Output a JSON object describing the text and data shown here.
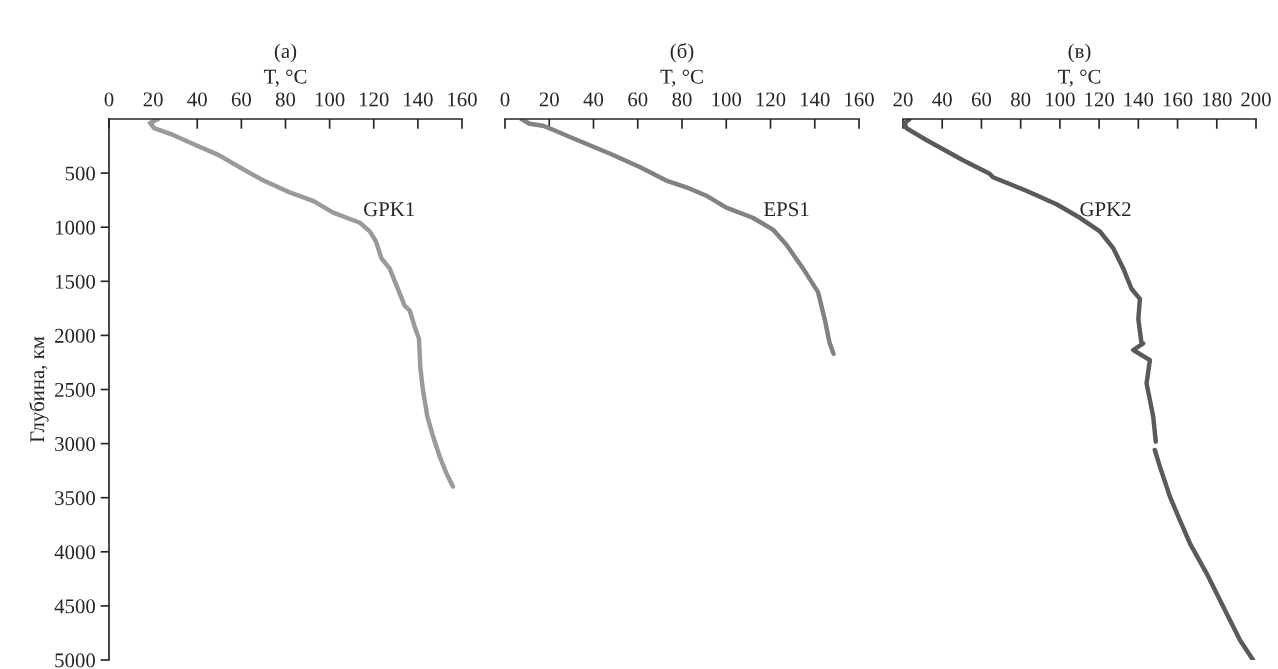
{
  "chart_data": [
    {
      "type": "line",
      "title": "(a)",
      "xlabel": "T, °C",
      "ylabel": "Глубина, км",
      "xlim": [
        0,
        160
      ],
      "xticks": [
        0,
        20,
        40,
        60,
        80,
        100,
        120,
        140,
        160
      ],
      "ylim": [
        5000,
        0
      ],
      "yticks": [
        500,
        1000,
        1500,
        2000,
        2500,
        3000,
        3500,
        4000,
        4500,
        5000
      ],
      "grid": false,
      "legend": false,
      "series": [
        {
          "name": "GPK1",
          "color": "#9a9a9a",
          "x": [
            22.3,
            18.6,
            20.4,
            29,
            41,
            49.8,
            59,
            70,
            81.9,
            92.5,
            101.6,
            113.7,
            118.2,
            121,
            123.5,
            127.2,
            130.3,
            134,
            136.3,
            138.6,
            140.5,
            141.1,
            142.3,
            144.3,
            146.9,
            149.9,
            152.9,
            155.9
          ],
          "values": [
            0,
            37,
            84,
            147,
            256,
            334,
            444,
            569,
            678,
            756,
            866,
            959,
            1038,
            1131,
            1288,
            1381,
            1538,
            1725,
            1770,
            1923,
            2031,
            2291,
            2506,
            2751,
            2935,
            3119,
            3273,
            3396
          ]
        }
      ]
    },
    {
      "type": "line",
      "title": "(б)",
      "xlabel": "T, °C",
      "xlim": [
        0,
        160
      ],
      "xticks": [
        0,
        20,
        40,
        60,
        80,
        100,
        120,
        140,
        160
      ],
      "ylim": [
        5000,
        0
      ],
      "tick_labels": "x",
      "grid": false,
      "legend": false,
      "series": [
        {
          "name": "EPS1",
          "color": "#828282",
          "x": [
            7.4,
            11.1,
            17.2,
            21.7,
            30.7,
            47.3,
            60.9,
            72.9,
            82,
            91,
            100,
            112,
            121.1,
            127.2,
            134.7,
            141.5,
            144.5,
            146.7,
            148.5
          ],
          "values": [
            0,
            44,
            62,
            100,
            178,
            319,
            444,
            569,
            631,
            709,
            819,
            913,
            1022,
            1163,
            1381,
            1600,
            1850,
            2069,
            2170
          ]
        }
      ]
    },
    {
      "type": "line",
      "title": "(в)",
      "xlabel": "T, °C",
      "xlim": [
        20,
        200
      ],
      "xticks": [
        20,
        40,
        60,
        80,
        100,
        120,
        140,
        160,
        180,
        200
      ],
      "ylim": [
        5000,
        0
      ],
      "tick_labels": "x",
      "grid": false,
      "legend": false,
      "series": [
        {
          "name": "GPK2",
          "color": "#5a5a5c",
          "x": [
            23.4,
            20.9,
            21.7,
            31.9,
            50.6,
            64.2,
            65.9,
            82.9,
            98.3,
            110.2,
            120.4,
            127.2,
            132.3,
            136.5,
            140.8,
            140,
            141.6,
            142.5,
            137.4,
            145.9,
            144.2,
            147.6,
            148.9,
            null,
            148.4,
            151,
            156.1,
            160.4,
            166.3,
            174.8,
            183.3,
            191.8,
            198.5
          ],
          "values": [
            0,
            37,
            84,
            194,
            381,
            506,
            538,
            663,
            788,
            913,
            1038,
            1194,
            1381,
            1569,
            1663,
            1850,
            2069,
            2073,
            2135,
            2228,
            2443,
            2751,
            2982,
            null,
            3059,
            3213,
            3490,
            3675,
            3922,
            4199,
            4507,
            4815,
            5000
          ]
        }
      ]
    }
  ]
}
